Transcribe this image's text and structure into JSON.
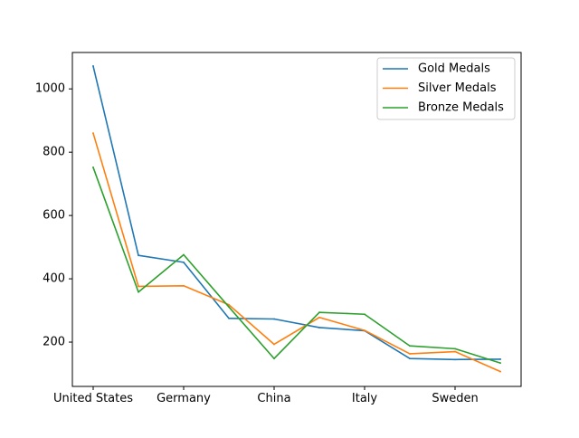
{
  "chart_data": {
    "type": "line",
    "categories": [
      "United States",
      "",
      "Germany",
      "",
      "China",
      "",
      "Italy",
      "",
      "Sweden",
      ""
    ],
    "x_tick_labels": [
      "United States",
      "Germany",
      "China",
      "Italy",
      "Sweden"
    ],
    "y_ticks": [
      200,
      400,
      600,
      800,
      1000
    ],
    "ylim": [
      60,
      1115
    ],
    "grid": false,
    "legend_position": "top-right",
    "series": [
      {
        "name": "Gold Medals",
        "color": "#1f77b4",
        "values": [
          1072,
          474,
          452,
          275,
          273,
          246,
          236,
          148,
          145,
          146
        ]
      },
      {
        "name": "Silver Medals",
        "color": "#ff7f0e",
        "values": [
          860,
          376,
          378,
          318,
          193,
          278,
          237,
          163,
          170,
          107
        ]
      },
      {
        "name": "Bronze Medals",
        "color": "#2ca02c",
        "values": [
          752,
          358,
          476,
          311,
          148,
          294,
          288,
          188,
          179,
          134
        ]
      }
    ]
  }
}
